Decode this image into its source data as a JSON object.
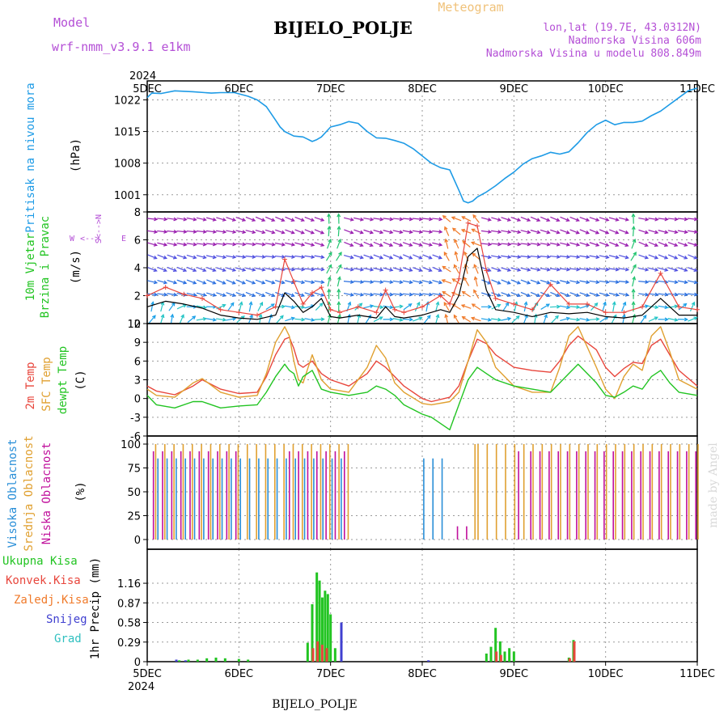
{
  "header": {
    "model_label": "Model",
    "model_value": "wrf-nmm_v3.9.1 e1km",
    "station_title": "BIJELO_POLJE",
    "meteogram_label": "Meteogram",
    "lonlat": "lon,lat (19.7E, 43.0312N)",
    "elevation": "Nadmorska Visina 606m",
    "model_elevation": "Nadmorska Visina u modelu 808.849m"
  },
  "footer": {
    "station": "BIJELO_POLJE",
    "watermark": "made by Angel"
  },
  "time_axis": {
    "year": "2024",
    "labels": [
      "5DEC",
      "6DEC",
      "7DEC",
      "8DEC",
      "9DEC",
      "10DEC",
      "11DEC"
    ]
  },
  "wind_legend": {
    "up": "N",
    "down": "S",
    "left": "W",
    "right": "E"
  },
  "colors": {
    "pressure": "#1e9be6",
    "wind_speed": "#000000",
    "gust": "#e8463c",
    "temp2m": "#e8463c",
    "sfc_temp": "#e0a030",
    "dewpt": "#22c422",
    "cloud_high": "#2a8fd8",
    "cloud_mid": "#e0a030",
    "cloud_low": "#c0109c",
    "precip_total": "#22c422",
    "precip_conv": "#e8463c",
    "precip_strat": "#f07a2a",
    "snow": "#4040d0",
    "grad": "#30c0c0",
    "label_purple": "#b44fd6"
  },
  "chart_data": [
    {
      "type": "line",
      "title": "",
      "ylabel": "Pritisak na nivou mora",
      "unit": "(hPa)",
      "ylim": [
        997.2,
        1026.2
      ],
      "yticks": [
        "1001",
        "1008",
        "1015",
        "1022"
      ],
      "ytick_values": [
        1001,
        1008,
        1015,
        1022
      ],
      "series": [
        {
          "x": [
            0,
            0.05,
            0.15,
            0.3,
            0.5,
            0.7,
            0.8,
            0.95,
            1.1,
            1.2,
            1.3,
            1.4,
            1.45,
            1.5,
            1.6,
            1.7,
            1.8,
            1.85,
            1.9,
            2.0,
            2.1,
            2.2,
            2.3,
            2.4,
            2.5,
            2.6,
            2.7,
            2.8,
            2.9,
            3.0,
            3.1,
            3.2,
            3.3,
            3.4,
            3.45,
            3.5,
            3.55,
            3.6,
            3.7,
            3.8,
            3.9,
            4.0,
            4.1,
            4.2,
            4.3,
            4.4,
            4.5,
            4.6,
            4.7,
            4.8,
            4.9,
            5.0,
            5.1,
            5.2,
            5.3,
            5.4,
            5.5,
            5.6,
            5.7,
            5.8,
            5.9,
            6.0
          ],
          "values": [
            1022.5,
            1023.5,
            1023.4,
            1024.0,
            1023.8,
            1023.5,
            1023.6,
            1023.6,
            1022.8,
            1022.0,
            1020.5,
            1017.5,
            1016.0,
            1015.0,
            1014.0,
            1013.8,
            1012.8,
            1013.2,
            1013.8,
            1016.0,
            1016.5,
            1017.2,
            1016.8,
            1015.0,
            1013.6,
            1013.5,
            1013.0,
            1012.4,
            1011.2,
            1009.6,
            1008.0,
            1007.0,
            1006.5,
            1002.0,
            999.6,
            999.2,
            999.6,
            1000.5,
            1001.6,
            1003.0,
            1004.6,
            1006.0,
            1007.8,
            1009.0,
            1009.6,
            1010.4,
            1010.0,
            1010.5,
            1012.5,
            1014.8,
            1016.5,
            1017.5,
            1016.5,
            1017.0,
            1017.0,
            1017.3,
            1018.5,
            1019.5,
            1021.0,
            1022.5,
            1024.0,
            1024.6
          ]
        }
      ]
    },
    {
      "type": "line",
      "title": "",
      "ylabel": "10m Vjetar Brzina i Pravac",
      "unit": "(m/s)",
      "ylim": [
        0,
        8
      ],
      "yticks": [
        "0",
        "2",
        "4",
        "6",
        "8"
      ],
      "ytick_values": [
        0,
        2,
        4,
        6,
        8
      ],
      "series": [
        {
          "name": "speed",
          "x": [
            0,
            0.2,
            0.4,
            0.6,
            0.8,
            1.0,
            1.2,
            1.4,
            1.5,
            1.6,
            1.7,
            1.8,
            1.9,
            2.0,
            2.1,
            2.3,
            2.5,
            2.6,
            2.7,
            2.8,
            3.0,
            3.2,
            3.3,
            3.4,
            3.5,
            3.6,
            3.7,
            3.8,
            4.0,
            4.2,
            4.4,
            4.6,
            4.8,
            5.0,
            5.2,
            5.4,
            5.6,
            5.8,
            6.0
          ],
          "values": [
            1.2,
            1.6,
            1.4,
            1.1,
            0.6,
            0.4,
            0.3,
            0.6,
            2.2,
            1.6,
            0.8,
            1.2,
            1.8,
            0.5,
            0.4,
            0.6,
            0.4,
            1.2,
            0.5,
            0.4,
            0.6,
            1.0,
            0.8,
            2.0,
            4.8,
            5.4,
            2.4,
            1.0,
            0.8,
            0.5,
            0.8,
            0.7,
            0.8,
            0.5,
            0.4,
            0.6,
            1.8,
            0.6,
            0.6
          ]
        },
        {
          "name": "gust",
          "x": [
            0,
            0.2,
            0.4,
            0.6,
            0.8,
            1.0,
            1.2,
            1.4,
            1.5,
            1.6,
            1.7,
            1.8,
            1.9,
            2.0,
            2.1,
            2.3,
            2.5,
            2.6,
            2.7,
            2.8,
            3.0,
            3.2,
            3.3,
            3.4,
            3.5,
            3.6,
            3.7,
            3.8,
            4.0,
            4.2,
            4.4,
            4.6,
            4.8,
            5.0,
            5.2,
            5.4,
            5.6,
            5.8,
            6.0
          ],
          "values": [
            2.0,
            2.6,
            2.1,
            1.8,
            1.0,
            0.8,
            0.6,
            1.2,
            4.6,
            3.0,
            1.4,
            2.2,
            2.6,
            1.0,
            0.8,
            1.2,
            0.8,
            2.4,
            1.0,
            0.8,
            1.2,
            2.0,
            1.4,
            3.2,
            7.2,
            7.0,
            3.8,
            1.8,
            1.4,
            1.0,
            2.8,
            1.4,
            1.4,
            0.8,
            0.8,
            1.2,
            3.6,
            1.2,
            1.0
          ]
        }
      ]
    },
    {
      "type": "line",
      "title": "",
      "ylabel": "2m Temp / SFC Temp / dewpt Temp",
      "unit": "(C)",
      "ylim": [
        -6,
        12
      ],
      "yticks": [
        "-6",
        "-3",
        "0",
        "3",
        "6",
        "9",
        "12"
      ],
      "ytick_values": [
        -6,
        -3,
        0,
        3,
        6,
        9,
        12
      ],
      "series": [
        {
          "name": "2m Temp",
          "x": [
            0,
            0.1,
            0.3,
            0.5,
            0.6,
            0.8,
            1.0,
            1.2,
            1.3,
            1.4,
            1.5,
            1.55,
            1.6,
            1.65,
            1.7,
            1.8,
            1.9,
            2.0,
            2.2,
            2.4,
            2.5,
            2.6,
            2.7,
            2.8,
            3.0,
            3.1,
            3.3,
            3.4,
            3.5,
            3.6,
            3.7,
            3.8,
            4.0,
            4.2,
            4.4,
            4.5,
            4.6,
            4.7,
            4.9,
            5.0,
            5.1,
            5.2,
            5.3,
            5.4,
            5.5,
            5.6,
            5.7,
            5.8,
            6.0
          ],
          "values": [
            2.0,
            1.2,
            0.6,
            2.0,
            3.0,
            1.5,
            0.8,
            1.0,
            3.5,
            7.0,
            9.5,
            9.8,
            8.0,
            5.5,
            5.0,
            6.0,
            4.0,
            3.0,
            2.0,
            4.0,
            6.0,
            5.0,
            3.5,
            2.0,
            0.0,
            -0.5,
            0.2,
            2.0,
            6.0,
            9.5,
            8.8,
            7.0,
            5.0,
            4.5,
            4.2,
            6.0,
            8.5,
            10.0,
            7.8,
            5.0,
            3.5,
            4.8,
            5.8,
            5.6,
            8.5,
            9.5,
            7.0,
            4.5,
            2.0
          ]
        },
        {
          "name": "SFC Temp",
          "x": [
            0,
            0.1,
            0.3,
            0.5,
            0.6,
            0.8,
            1.0,
            1.2,
            1.3,
            1.4,
            1.5,
            1.55,
            1.6,
            1.65,
            1.7,
            1.8,
            1.9,
            2.0,
            2.2,
            2.4,
            2.5,
            2.6,
            2.7,
            2.8,
            3.0,
            3.1,
            3.3,
            3.4,
            3.5,
            3.6,
            3.7,
            3.8,
            4.0,
            4.2,
            4.4,
            4.5,
            4.6,
            4.7,
            4.9,
            5.0,
            5.1,
            5.2,
            5.3,
            5.4,
            5.5,
            5.6,
            5.7,
            5.8,
            6.0
          ],
          "values": [
            1.5,
            0.5,
            0.2,
            2.5,
            3.2,
            1.0,
            0.2,
            0.5,
            4.0,
            9.0,
            11.5,
            10.0,
            6.0,
            3.0,
            2.5,
            7.0,
            3.0,
            1.5,
            1.0,
            5.0,
            8.5,
            6.5,
            2.5,
            1.0,
            -0.8,
            -1.0,
            -0.5,
            1.0,
            6.0,
            11.0,
            9.0,
            5.0,
            2.0,
            1.0,
            1.0,
            5.0,
            10.0,
            11.5,
            5.0,
            1.5,
            0.0,
            3.5,
            5.5,
            4.5,
            10.0,
            11.5,
            7.5,
            3.0,
            1.5
          ]
        },
        {
          "name": "dewpt Temp",
          "x": [
            0,
            0.1,
            0.3,
            0.5,
            0.6,
            0.8,
            1.0,
            1.2,
            1.3,
            1.4,
            1.5,
            1.55,
            1.6,
            1.65,
            1.7,
            1.8,
            1.9,
            2.0,
            2.2,
            2.4,
            2.5,
            2.6,
            2.7,
            2.8,
            3.0,
            3.1,
            3.3,
            3.4,
            3.5,
            3.6,
            3.7,
            3.8,
            4.0,
            4.2,
            4.4,
            4.5,
            4.6,
            4.7,
            4.9,
            5.0,
            5.1,
            5.2,
            5.3,
            5.4,
            5.5,
            5.6,
            5.7,
            5.8,
            6.0
          ],
          "values": [
            0.5,
            -1.0,
            -1.5,
            -0.5,
            -0.5,
            -1.5,
            -1.2,
            -1.0,
            1.0,
            3.5,
            5.5,
            4.5,
            4.0,
            2.0,
            3.5,
            4.5,
            1.5,
            1.0,
            0.5,
            1.0,
            2.0,
            1.5,
            0.5,
            -1.0,
            -2.5,
            -3.0,
            -5.0,
            -1.0,
            3.0,
            5.0,
            4.0,
            3.0,
            2.0,
            1.5,
            1.0,
            2.5,
            4.0,
            5.5,
            2.5,
            0.5,
            0.2,
            1.0,
            2.0,
            1.5,
            3.5,
            4.5,
            2.5,
            1.0,
            0.5
          ]
        }
      ]
    },
    {
      "type": "bar",
      "title": "",
      "ylabel": "Visoka Oblacnost / Srednja Oblacnost / Niska Oblacnost",
      "unit": "(%)",
      "ylim": [
        0,
        100
      ],
      "yticks": [
        "0",
        "25",
        "50",
        "75",
        "100"
      ],
      "ytick_values": [
        0,
        25,
        50,
        75,
        100
      ],
      "series": [
        {
          "name": "Visoka Oblacnost",
          "ranges": [
            [
              0.05,
              1.45
            ],
            [
              1.45,
              2.2
            ],
            [
              2.95,
              3.25
            ]
          ],
          "values": [
            100,
            100,
            100
          ]
        },
        {
          "name": "Srednja Oblacnost",
          "ranges": [
            [
              0.05,
              1.45
            ],
            [
              1.45,
              2.2
            ],
            [
              3.5,
              6.0
            ]
          ],
          "values": [
            100,
            100,
            100
          ]
        },
        {
          "name": "Niska Oblacnost",
          "ranges": [
            [
              0.05,
              1.0
            ],
            [
              1.5,
              2.2
            ],
            [
              3.3,
              3.5
            ],
            [
              4.0,
              6.0
            ]
          ],
          "values": [
            100,
            100,
            15,
            100
          ]
        }
      ]
    },
    {
      "type": "bar",
      "title": "",
      "ylabel": "1hr Precip",
      "unit": "(mm)",
      "ylim": [
        0,
        1.4
      ],
      "yticks": [
        "0",
        "0.29",
        "0.58",
        "0.87",
        "1.16"
      ],
      "ytick_values": [
        0,
        0.29,
        0.58,
        0.87,
        1.16
      ],
      "legend": [
        "Ukupna Kisa",
        "Konvek.Kisa",
        "Zaledj.Kisa",
        "Snijeg",
        "Grad"
      ],
      "series": [
        {
          "name": "Ukupna Kisa",
          "x": [
            0.35,
            0.45,
            0.55,
            0.65,
            0.75,
            0.85,
            1.0,
            1.1,
            1.75,
            1.8,
            1.85,
            1.88,
            1.91,
            1.94,
            1.97,
            2.0,
            2.05,
            3.7,
            3.75,
            3.8,
            3.85,
            3.9,
            3.95,
            4.0,
            4.6,
            4.65
          ],
          "values": [
            0.02,
            0.03,
            0.03,
            0.05,
            0.06,
            0.05,
            0.04,
            0.03,
            0.28,
            0.85,
            1.32,
            1.2,
            0.95,
            1.05,
            1.0,
            0.7,
            0.2,
            0.12,
            0.22,
            0.5,
            0.3,
            0.15,
            0.2,
            0.15,
            0.06,
            0.32
          ]
        },
        {
          "name": "Konvek.Kisa",
          "x": [
            1.8,
            1.85,
            1.9,
            1.95,
            3.8,
            3.85,
            4.6,
            4.65
          ],
          "values": [
            0.2,
            0.3,
            0.25,
            0.2,
            0.15,
            0.1,
            0.05,
            0.3
          ]
        },
        {
          "name": "Snijeg",
          "x": [
            0.3,
            0.4,
            2.1,
            3.05
          ],
          "values": [
            0.03,
            0.02,
            0.58,
            0.02
          ]
        }
      ]
    }
  ]
}
